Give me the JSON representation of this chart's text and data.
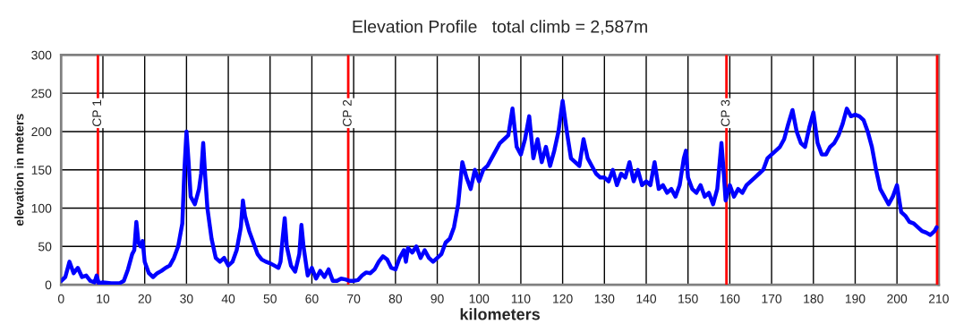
{
  "chart_data": {
    "type": "line",
    "title": "Elevation Profile   total climb = 2,587m",
    "xlabel": "kilometers",
    "ylabel": "elevation in meters",
    "x": [
      0,
      1,
      2,
      3,
      4,
      5,
      6,
      7,
      8,
      8.5,
      9,
      10,
      12,
      14,
      15,
      16,
      17,
      17.5,
      18,
      18.5,
      19,
      19.5,
      20,
      21,
      22,
      23,
      24,
      25,
      26,
      27,
      28,
      29,
      29.5,
      30,
      30.5,
      31,
      32,
      33,
      33.5,
      34,
      34.5,
      35,
      36,
      37,
      38,
      39,
      40,
      41,
      42,
      43,
      43.5,
      44,
      45,
      46,
      47,
      48,
      49,
      50,
      51,
      52,
      52.5,
      53,
      53.5,
      54,
      55,
      56,
      57,
      57.5,
      58,
      59,
      60,
      61,
      62,
      63,
      64,
      65,
      66,
      67,
      68,
      69,
      70,
      71,
      72,
      73,
      74,
      75,
      76,
      77,
      78,
      79,
      80,
      81,
      82,
      82.5,
      83,
      84,
      85,
      86,
      87,
      88,
      89,
      90,
      91,
      92,
      93,
      94,
      95,
      96,
      97,
      98,
      99,
      100,
      101,
      102,
      103,
      104,
      105,
      106,
      107,
      108,
      109,
      110,
      111,
      112,
      113,
      114,
      115,
      116,
      117,
      118,
      119,
      120,
      121,
      122,
      123,
      124,
      125,
      126,
      127,
      128,
      129,
      130,
      131,
      132,
      133,
      134,
      135,
      136,
      137,
      138,
      139,
      140,
      141,
      142,
      143,
      144,
      145,
      146,
      147,
      148,
      149,
      149.5,
      150,
      151,
      152,
      153,
      154,
      155,
      156,
      157,
      158,
      158.5,
      159,
      160,
      161,
      162,
      163,
      164,
      165,
      166,
      167,
      168,
      169,
      170,
      171,
      172,
      173,
      174,
      175,
      176,
      177,
      178,
      179,
      180,
      181,
      182,
      183,
      184,
      185,
      186,
      187,
      188,
      189,
      190,
      191,
      192,
      193,
      194,
      195,
      196,
      197,
      198,
      199,
      200,
      201,
      202,
      203,
      204,
      205,
      206,
      207,
      208,
      209,
      209.5
    ],
    "series": [
      {
        "color": "#0000ff",
        "values": [
          5,
          10,
          30,
          15,
          22,
          10,
          12,
          5,
          3,
          12,
          2,
          3,
          2,
          2,
          5,
          20,
          40,
          45,
          82,
          55,
          50,
          57,
          30,
          15,
          10,
          15,
          18,
          22,
          25,
          35,
          50,
          80,
          150,
          200,
          160,
          115,
          105,
          125,
          145,
          185,
          140,
          100,
          60,
          35,
          30,
          35,
          25,
          30,
          45,
          75,
          110,
          90,
          70,
          55,
          40,
          33,
          30,
          28,
          25,
          22,
          30,
          60,
          87,
          50,
          25,
          17,
          40,
          78,
          50,
          12,
          22,
          8,
          18,
          10,
          20,
          5,
          5,
          8,
          7,
          5,
          5,
          6,
          12,
          16,
          15,
          20,
          30,
          37,
          33,
          22,
          20,
          35,
          45,
          30,
          48,
          42,
          50,
          35,
          45,
          35,
          30,
          35,
          40,
          55,
          60,
          75,
          105,
          160,
          140,
          125,
          150,
          135,
          150,
          155,
          165,
          175,
          185,
          190,
          195,
          230,
          180,
          170,
          190,
          220,
          165,
          190,
          160,
          180,
          155,
          175,
          200,
          240,
          200,
          165,
          160,
          155,
          190,
          165,
          155,
          145,
          140,
          140,
          135,
          150,
          130,
          145,
          140,
          160,
          135,
          150,
          130,
          135,
          130,
          160,
          125,
          130,
          120,
          125,
          115,
          130,
          165,
          175,
          140,
          125,
          120,
          130,
          115,
          120,
          105,
          125,
          185,
          150,
          110,
          130,
          115,
          125,
          120,
          130,
          135,
          140,
          145,
          150,
          165,
          170,
          175,
          180,
          190,
          210,
          228,
          200,
          185,
          180,
          205,
          225,
          185,
          170,
          170,
          180,
          185,
          195,
          210,
          230,
          220,
          222,
          220,
          215,
          200,
          180,
          150,
          125,
          115,
          105,
          115,
          130,
          95,
          90,
          82,
          80,
          75,
          70,
          68,
          65,
          70,
          75
        ]
      }
    ],
    "xlim": [
      0,
      210
    ],
    "ylim": [
      0,
      300
    ],
    "xticks": [
      0,
      10,
      20,
      30,
      40,
      50,
      60,
      70,
      80,
      90,
      100,
      110,
      120,
      130,
      140,
      150,
      160,
      170,
      180,
      190,
      200,
      210
    ],
    "yticks": [
      0,
      50,
      100,
      150,
      200,
      250,
      300
    ],
    "grid": true,
    "legend": false,
    "marker": "none",
    "line_style": "solid",
    "ref_lines": [
      {
        "axis": "x",
        "value": 8.8,
        "label": "CP 1",
        "color": "#ff0000"
      },
      {
        "axis": "x",
        "value": 68.7,
        "label": "CP 2",
        "color": "#ff0000"
      },
      {
        "axis": "x",
        "value": 159.2,
        "label": "CP 3",
        "color": "#ff0000"
      },
      {
        "axis": "x",
        "value": 209.6,
        "color": "#ff0000"
      }
    ]
  }
}
